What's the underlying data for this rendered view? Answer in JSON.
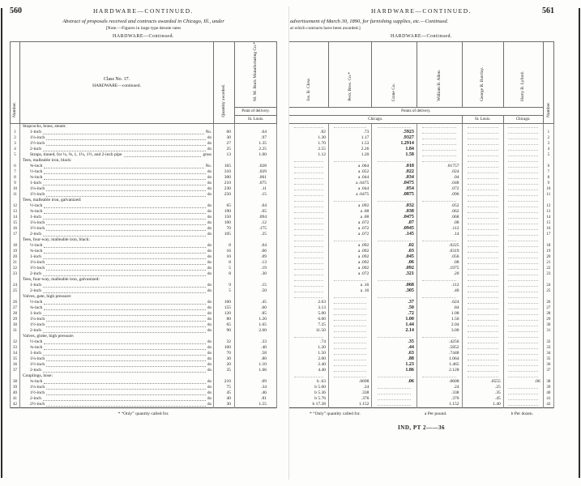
{
  "left": {
    "folio": "560",
    "running_title": "HARDWARE—CONTINUED.",
    "caption": "Abstract of proposals received and contracts awarded in Chicago, Ill., under",
    "note": "[Note.—Figures in large type denote rates",
    "table_title": "HARDWARE—Continued.",
    "headers": {
      "number": "Number.",
      "class_line1": "Class No. 17.",
      "class_line2": "HARDWARE—continued.",
      "quantity": "Quantity awarded.",
      "vendor": "M. M. Buck Manufacturing Co.*",
      "point_of_delivery": "Point of delivery.",
      "place": "St. Louis."
    },
    "rows": [
      {
        "cat": "Stopcocks, brass, steam:"
      },
      {
        "n": "1",
        "item": "1-inch",
        "unit": "No.",
        "qty": "60",
        "price": ".64"
      },
      {
        "n": "2",
        "item": "1¼-inch",
        "unit": "do",
        "qty": "30",
        "price": ".97"
      },
      {
        "n": "3",
        "item": "1½-inch",
        "unit": "do",
        "qty": "27",
        "price": "1.35"
      },
      {
        "n": "4",
        "item": "2-inch",
        "unit": "do",
        "qty": "25",
        "price": "2.25"
      },
      {
        "n": "5",
        "item": "Straps, tinned, for ¼, ⅜, 1, 1¼, 1½, and 2-inch pipe",
        "unit": "gross",
        "qty": "13",
        "price": "1.00"
      },
      {
        "cat": "Tees, malleable iron, black:"
      },
      {
        "n": "6",
        "item": "⅜-inch",
        "unit": "No.",
        "qty": "165",
        "price": ".028"
      },
      {
        "n": "7",
        "item": "½-inch",
        "unit": "do",
        "qty": "310",
        "price": ".029"
      },
      {
        "n": "8",
        "item": "¾-inch",
        "unit": "do",
        "qty": "300",
        "price": ".061"
      },
      {
        "n": "9",
        "item": "1-inch",
        "unit": "do",
        "qty": "210",
        "price": ".075"
      },
      {
        "n": "10",
        "item": "1¼-inch",
        "unit": "do",
        "qty": "230",
        "price": ".11"
      },
      {
        "n": "11",
        "item": "1½-inch",
        "unit": "do",
        "qty": "250",
        "price": ".15"
      },
      {
        "cat": "Tees, malleable iron, galvanized:"
      },
      {
        "n": "12",
        "item": "½-inch",
        "unit": "do",
        "qty": "65",
        "price": ".04"
      },
      {
        "n": "13",
        "item": "¾-inch",
        "unit": "do",
        "qty": "190",
        "price": ".05"
      },
      {
        "n": "14",
        "item": "1-inch",
        "unit": "do",
        "qty": "150",
        "price": ".094"
      },
      {
        "n": "15",
        "item": "1¼-inch",
        "unit": "do",
        "qty": "100",
        "price": ".12"
      },
      {
        "n": "16",
        "item": "1½-inch",
        "unit": "do",
        "qty": "70",
        "price": ".175"
      },
      {
        "n": "17",
        "item": "2-inch",
        "unit": "do",
        "qty": "105",
        "price": ".25"
      },
      {
        "cat": "Tees, four-way, malleable iron, black:"
      },
      {
        "n": "18",
        "item": "½-inch",
        "unit": "do",
        "qty": "8",
        "price": ".04"
      },
      {
        "n": "19",
        "item": "¾-inch",
        "unit": "do",
        "qty": "16",
        "price": ".06"
      },
      {
        "n": "20",
        "item": "1-inch",
        "unit": "do",
        "qty": "10",
        "price": ".09"
      },
      {
        "n": "21",
        "item": "1¼-inch",
        "unit": "do",
        "qty": "8",
        "price": ".13"
      },
      {
        "n": "22",
        "item": "1½-inch",
        "unit": "do",
        "qty": "5",
        "price": ".19"
      },
      {
        "n": "23",
        "item": "2-inch",
        "unit": "do",
        "qty": "8",
        "price": ".30"
      },
      {
        "cat": "Tees, four-way, malleable iron, galvanized:"
      },
      {
        "n": "24",
        "item": "1-inch",
        "unit": "do",
        "qty": "9",
        "price": ".15"
      },
      {
        "n": "25",
        "item": "2-inch",
        "unit": "do",
        "qty": "5",
        "price": ".50"
      },
      {
        "cat": "Valves, gate, high pressure:"
      },
      {
        "n": "26",
        "item": "½-inch",
        "unit": "do",
        "qty": "100",
        "price": ".45"
      },
      {
        "n": "27",
        "item": "¾-inch",
        "unit": "do",
        "qty": "155",
        "price": ".60"
      },
      {
        "n": "28",
        "item": "1-inch",
        "unit": "do",
        "qty": "120",
        "price": ".85"
      },
      {
        "n": "29",
        "item": "1¼-inch",
        "unit": "do",
        "qty": "80",
        "price": "1.20"
      },
      {
        "n": "30",
        "item": "1½-inch",
        "unit": "do",
        "qty": "65",
        "price": "1.65"
      },
      {
        "n": "31",
        "item": "2-inch",
        "unit": "do",
        "qty": "90",
        "price": "2.60"
      },
      {
        "cat": "Valves, globe, high pressure:"
      },
      {
        "n": "32",
        "item": "½-inch",
        "unit": "do",
        "qty": "32",
        "price": ".33"
      },
      {
        "n": "33",
        "item": "¾-inch",
        "unit": "do",
        "qty": "100",
        "price": ".40"
      },
      {
        "n": "34",
        "item": "1-inch",
        "unit": "do",
        "qty": "70",
        "price": ".58"
      },
      {
        "n": "35",
        "item": "1¼-inch",
        "unit": "do",
        "qty": "30",
        "price": ".80"
      },
      {
        "n": "36",
        "item": "1½-inch",
        "unit": "do",
        "qty": "20",
        "price": "1.10"
      },
      {
        "n": "37",
        "item": "2-inch",
        "unit": "do",
        "qty": "35",
        "price": "1.66"
      },
      {
        "cat": "Couplings, hose:"
      },
      {
        "n": "38",
        "item": "¾-inch",
        "unit": "do",
        "qty": "210",
        "price": ".09"
      },
      {
        "n": "39",
        "item": "1¼-inch",
        "unit": "do",
        "qty": "75",
        "price": ".34"
      },
      {
        "n": "40",
        "item": "1½-inch",
        "unit": "do",
        "qty": "45",
        "price": ".46"
      },
      {
        "n": "41",
        "item": "2-inch",
        "unit": "do",
        "qty": "40",
        "price": ".81"
      },
      {
        "n": "42",
        "item": "2½-inch",
        "unit": "do",
        "qty": "30",
        "price": "1.55"
      }
    ],
    "footnote": "* “Only” quantity called for."
  },
  "right": {
    "folio": "561",
    "running_title": "HARDWARE—CONTINUED.",
    "caption": "advertisement of March 30, 1890, for furnishing supplies, etc.—Continued.",
    "note": "at which contracts have been awarded.]",
    "table_title": "HARDWARE—Continued.",
    "vendors": [
      "Jas. B. Clow.",
      "Peck Bros. Co.*",
      "Crane Co.",
      "William B. Allen.",
      "George R. Barclay.",
      "Harry B. Lyford."
    ],
    "points_of_delivery": "Points of delivery.",
    "places": [
      {
        "label": "Chicago."
      },
      {
        "label": "St. Louis."
      },
      {
        "label": "Chicago."
      }
    ],
    "number_header": "Number.",
    "rows": [
      {
        "cat": true
      },
      {
        "n": "1",
        "cells": [
          ".82",
          ".73",
          ".5923",
          "",
          "",
          ""
        ]
      },
      {
        "n": "2",
        "cells": [
          "1.30",
          "1.17",
          ".9327",
          "",
          "",
          ""
        ]
      },
      {
        "n": "3",
        "cells": [
          "1.70",
          "1.53",
          "1.2914",
          "",
          "",
          ""
        ]
      },
      {
        "n": "4",
        "cells": [
          "2.55",
          "2.26",
          "1.84",
          "",
          "",
          ""
        ]
      },
      {
        "n": "5",
        "cells": [
          "1.12",
          "1.20",
          "1.58",
          "",
          "",
          ""
        ]
      },
      {
        "cat": true
      },
      {
        "n": "6",
        "cells": [
          "",
          "a .064",
          ".018",
          ".01757",
          "",
          ""
        ]
      },
      {
        "n": "7",
        "cells": [
          "",
          "a .052",
          ".022",
          ".024",
          "",
          ""
        ]
      },
      {
        "n": "8",
        "cells": [
          "",
          "a .044",
          ".034",
          ".04",
          "",
          ""
        ]
      },
      {
        "n": "9",
        "cells": [
          "",
          "a .0475",
          ".0475",
          ".048",
          "",
          ""
        ]
      },
      {
        "n": "10",
        "cells": [
          "",
          "a .044",
          ".054",
          ".072",
          "",
          ""
        ]
      },
      {
        "n": "11",
        "cells": [
          "",
          "a .0475",
          ".0875",
          ".096",
          "",
          ""
        ]
      },
      {
        "cat": true
      },
      {
        "n": "12",
        "cells": [
          "",
          "a .092",
          ".032",
          ".052",
          "",
          ""
        ]
      },
      {
        "n": "13",
        "cells": [
          "",
          "a .08",
          ".038",
          ".062",
          "",
          ""
        ]
      },
      {
        "n": "14",
        "cells": [
          "",
          "a .08",
          ".0475",
          ".068",
          "",
          ""
        ]
      },
      {
        "n": "15",
        "cells": [
          "",
          "a .072",
          ".07",
          ".08",
          "",
          ""
        ]
      },
      {
        "n": "16",
        "cells": [
          "",
          "a .072",
          ".0945",
          ".112",
          "",
          ""
        ]
      },
      {
        "n": "17",
        "cells": [
          "",
          "a .072",
          ".145",
          ".14",
          "",
          ""
        ]
      },
      {
        "cat": true
      },
      {
        "n": "18",
        "cells": [
          "",
          "a .092",
          ".02",
          ".0225",
          "",
          ""
        ]
      },
      {
        "n": "19",
        "cells": [
          "",
          "a .092",
          ".03",
          ".0319",
          "",
          ""
        ]
      },
      {
        "n": "20",
        "cells": [
          "",
          "a .092",
          ".045",
          ".056",
          "",
          ""
        ]
      },
      {
        "n": "21",
        "cells": [
          "",
          "a .092",
          ".06",
          ".08",
          "",
          ""
        ]
      },
      {
        "n": "22",
        "cells": [
          "",
          "a .092",
          ".092",
          ".1975",
          "",
          ""
        ]
      },
      {
        "n": "23",
        "cells": [
          "",
          "a .072",
          ".321",
          ".20",
          "",
          ""
        ]
      },
      {
        "cat": true
      },
      {
        "n": "24",
        "cells": [
          "",
          "a .16",
          ".068",
          ".112",
          "",
          ""
        ]
      },
      {
        "n": "25",
        "cells": [
          "",
          "a .16",
          ".305",
          ".40",
          "",
          ""
        ]
      },
      {
        "cat": true
      },
      {
        "n": "26",
        "cells": [
          "2.63",
          "",
          ".37",
          ".624",
          "",
          ""
        ]
      },
      {
        "n": "27",
        "cells": [
          "3.13",
          "",
          ".50",
          ".84",
          "",
          ""
        ]
      },
      {
        "n": "28",
        "cells": [
          "5.00",
          "",
          ".72",
          "1.08",
          "",
          ""
        ]
      },
      {
        "n": "29",
        "cells": [
          "6.00",
          "",
          "1.00",
          "1.56",
          "",
          ""
        ]
      },
      {
        "n": "30",
        "cells": [
          "7.25",
          "",
          "1.44",
          "2.04",
          "",
          ""
        ]
      },
      {
        "n": "31",
        "cells": [
          "11.50",
          "",
          "2.14",
          "3.00",
          "",
          ""
        ]
      },
      {
        "cat": true
      },
      {
        "n": "32",
        "cells": [
          ".74",
          "",
          ".35",
          ".4256",
          "",
          ""
        ]
      },
      {
        "n": "33",
        "cells": [
          "1.20",
          "",
          ".44",
          ".5852",
          "",
          ""
        ]
      },
      {
        "n": "34",
        "cells": [
          "1.50",
          "",
          ".63",
          ".7448",
          "",
          ""
        ]
      },
      {
        "n": "35",
        "cells": [
          "2.00",
          "",
          ".88",
          "1.064",
          "",
          ""
        ]
      },
      {
        "n": "36",
        "cells": [
          "2.40",
          "",
          "1.23",
          "1.465",
          "",
          ""
        ]
      },
      {
        "n": "37",
        "cells": [
          "4.40",
          "",
          "1.86",
          "2.128",
          "",
          ""
        ]
      },
      {
        "cat": true
      },
      {
        "n": "38",
        "cells": [
          "b .63",
          ".0698",
          ".06",
          ".0608",
          ".0555",
          ".06"
        ]
      },
      {
        "n": "39",
        "cells": [
          "b 5.00",
          ".24",
          "",
          ".24",
          ".25",
          ""
        ]
      },
      {
        "n": "40",
        "cells": [
          "b 5.36",
          ".338",
          "",
          ".338",
          ".35",
          ""
        ]
      },
      {
        "n": "41",
        "cells": [
          "b 5.76",
          ".376",
          "",
          ".376",
          ".45",
          ""
        ]
      },
      {
        "n": "42",
        "cells": [
          "b 17.28",
          "1.152",
          "",
          "1.152",
          "1.40",
          ""
        ]
      }
    ],
    "footnotes": [
      "* “Only” quantity called for.",
      "a Per pound.",
      "b Per dozen."
    ],
    "signature": "IND, PT 2——36"
  }
}
